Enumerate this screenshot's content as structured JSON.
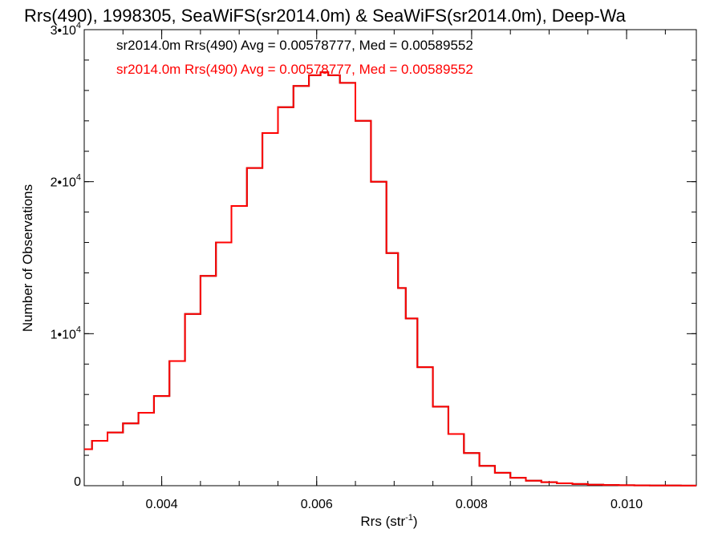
{
  "chart_data": {
    "type": "line",
    "title": "Rrs(490), 1998305, SeaWiFS(sr2014.0m) & SeaWiFS(sr2014.0m), Deep-Wa",
    "xlabel": "Rrs (str",
    "xlabel_sup": "-1",
    "xlabel_suffix": ")",
    "ylabel": "Number of Observations",
    "xlim": [
      0.003,
      0.0109
    ],
    "ylim": [
      0,
      30000
    ],
    "x_ticks": [
      {
        "value": 0.004,
        "label": "0.004"
      },
      {
        "value": 0.006,
        "label": "0.006"
      },
      {
        "value": 0.008,
        "label": "0.008"
      },
      {
        "value": 0.01,
        "label": "0.010"
      }
    ],
    "y_ticks": [
      {
        "value": 0,
        "label": "0",
        "sup": ""
      },
      {
        "value": 10000,
        "label": "1•10",
        "sup": "4"
      },
      {
        "value": 20000,
        "label": "2•10",
        "sup": "4"
      },
      {
        "value": 30000,
        "label": "3•10",
        "sup": "4"
      }
    ],
    "series": [
      {
        "color": "#000000",
        "legend": "sr2014.0m Rrs(490) Avg = 0.00578777, Med = 0.00589552",
        "x": [
          0.003,
          0.0032,
          0.0034,
          0.0036,
          0.0038,
          0.004,
          0.0042,
          0.0044,
          0.0046,
          0.0048,
          0.005,
          0.0052,
          0.0054,
          0.0056,
          0.0058,
          0.006,
          0.0061,
          0.0062,
          0.0064,
          0.0066,
          0.0068,
          0.007,
          0.0071,
          0.0072,
          0.0074,
          0.0076,
          0.0078,
          0.008,
          0.0082,
          0.0084,
          0.0086,
          0.0088,
          0.009,
          0.0092,
          0.0094,
          0.0096,
          0.0098,
          0.01,
          0.0102,
          0.0104,
          0.0106,
          0.0108,
          0.0109
        ],
        "y": [
          2400,
          2950,
          3500,
          4100,
          4800,
          5900,
          8200,
          11300,
          13800,
          16000,
          18400,
          20900,
          23200,
          24900,
          26300,
          27000,
          27200,
          27000,
          26500,
          24000,
          20000,
          15300,
          13000,
          11000,
          7800,
          5200,
          3400,
          2150,
          1300,
          850,
          520,
          330,
          230,
          160,
          110,
          70,
          50,
          30,
          20,
          15,
          10,
          5,
          5
        ]
      },
      {
        "color": "#ff0000",
        "legend": "sr2014.0m Rrs(490) Avg = 0.00578777, Med = 0.00589552",
        "x": [
          0.003,
          0.0032,
          0.0034,
          0.0036,
          0.0038,
          0.004,
          0.0042,
          0.0044,
          0.0046,
          0.0048,
          0.005,
          0.0052,
          0.0054,
          0.0056,
          0.0058,
          0.006,
          0.0061,
          0.0062,
          0.0064,
          0.0066,
          0.0068,
          0.007,
          0.0071,
          0.0072,
          0.0074,
          0.0076,
          0.0078,
          0.008,
          0.0082,
          0.0084,
          0.0086,
          0.0088,
          0.009,
          0.0092,
          0.0094,
          0.0096,
          0.0098,
          0.01,
          0.0102,
          0.0104,
          0.0106,
          0.0108,
          0.0109
        ],
        "y": [
          2400,
          2950,
          3500,
          4100,
          4800,
          5900,
          8200,
          11300,
          13800,
          16000,
          18400,
          20900,
          23200,
          24900,
          26300,
          27000,
          27200,
          27000,
          26500,
          24000,
          20000,
          15300,
          13000,
          11000,
          7800,
          5200,
          3400,
          2150,
          1300,
          850,
          520,
          330,
          230,
          160,
          110,
          70,
          50,
          30,
          20,
          15,
          10,
          5,
          5
        ]
      }
    ],
    "grid": false,
    "legend_position": "top-left",
    "minor_ticks": true
  }
}
